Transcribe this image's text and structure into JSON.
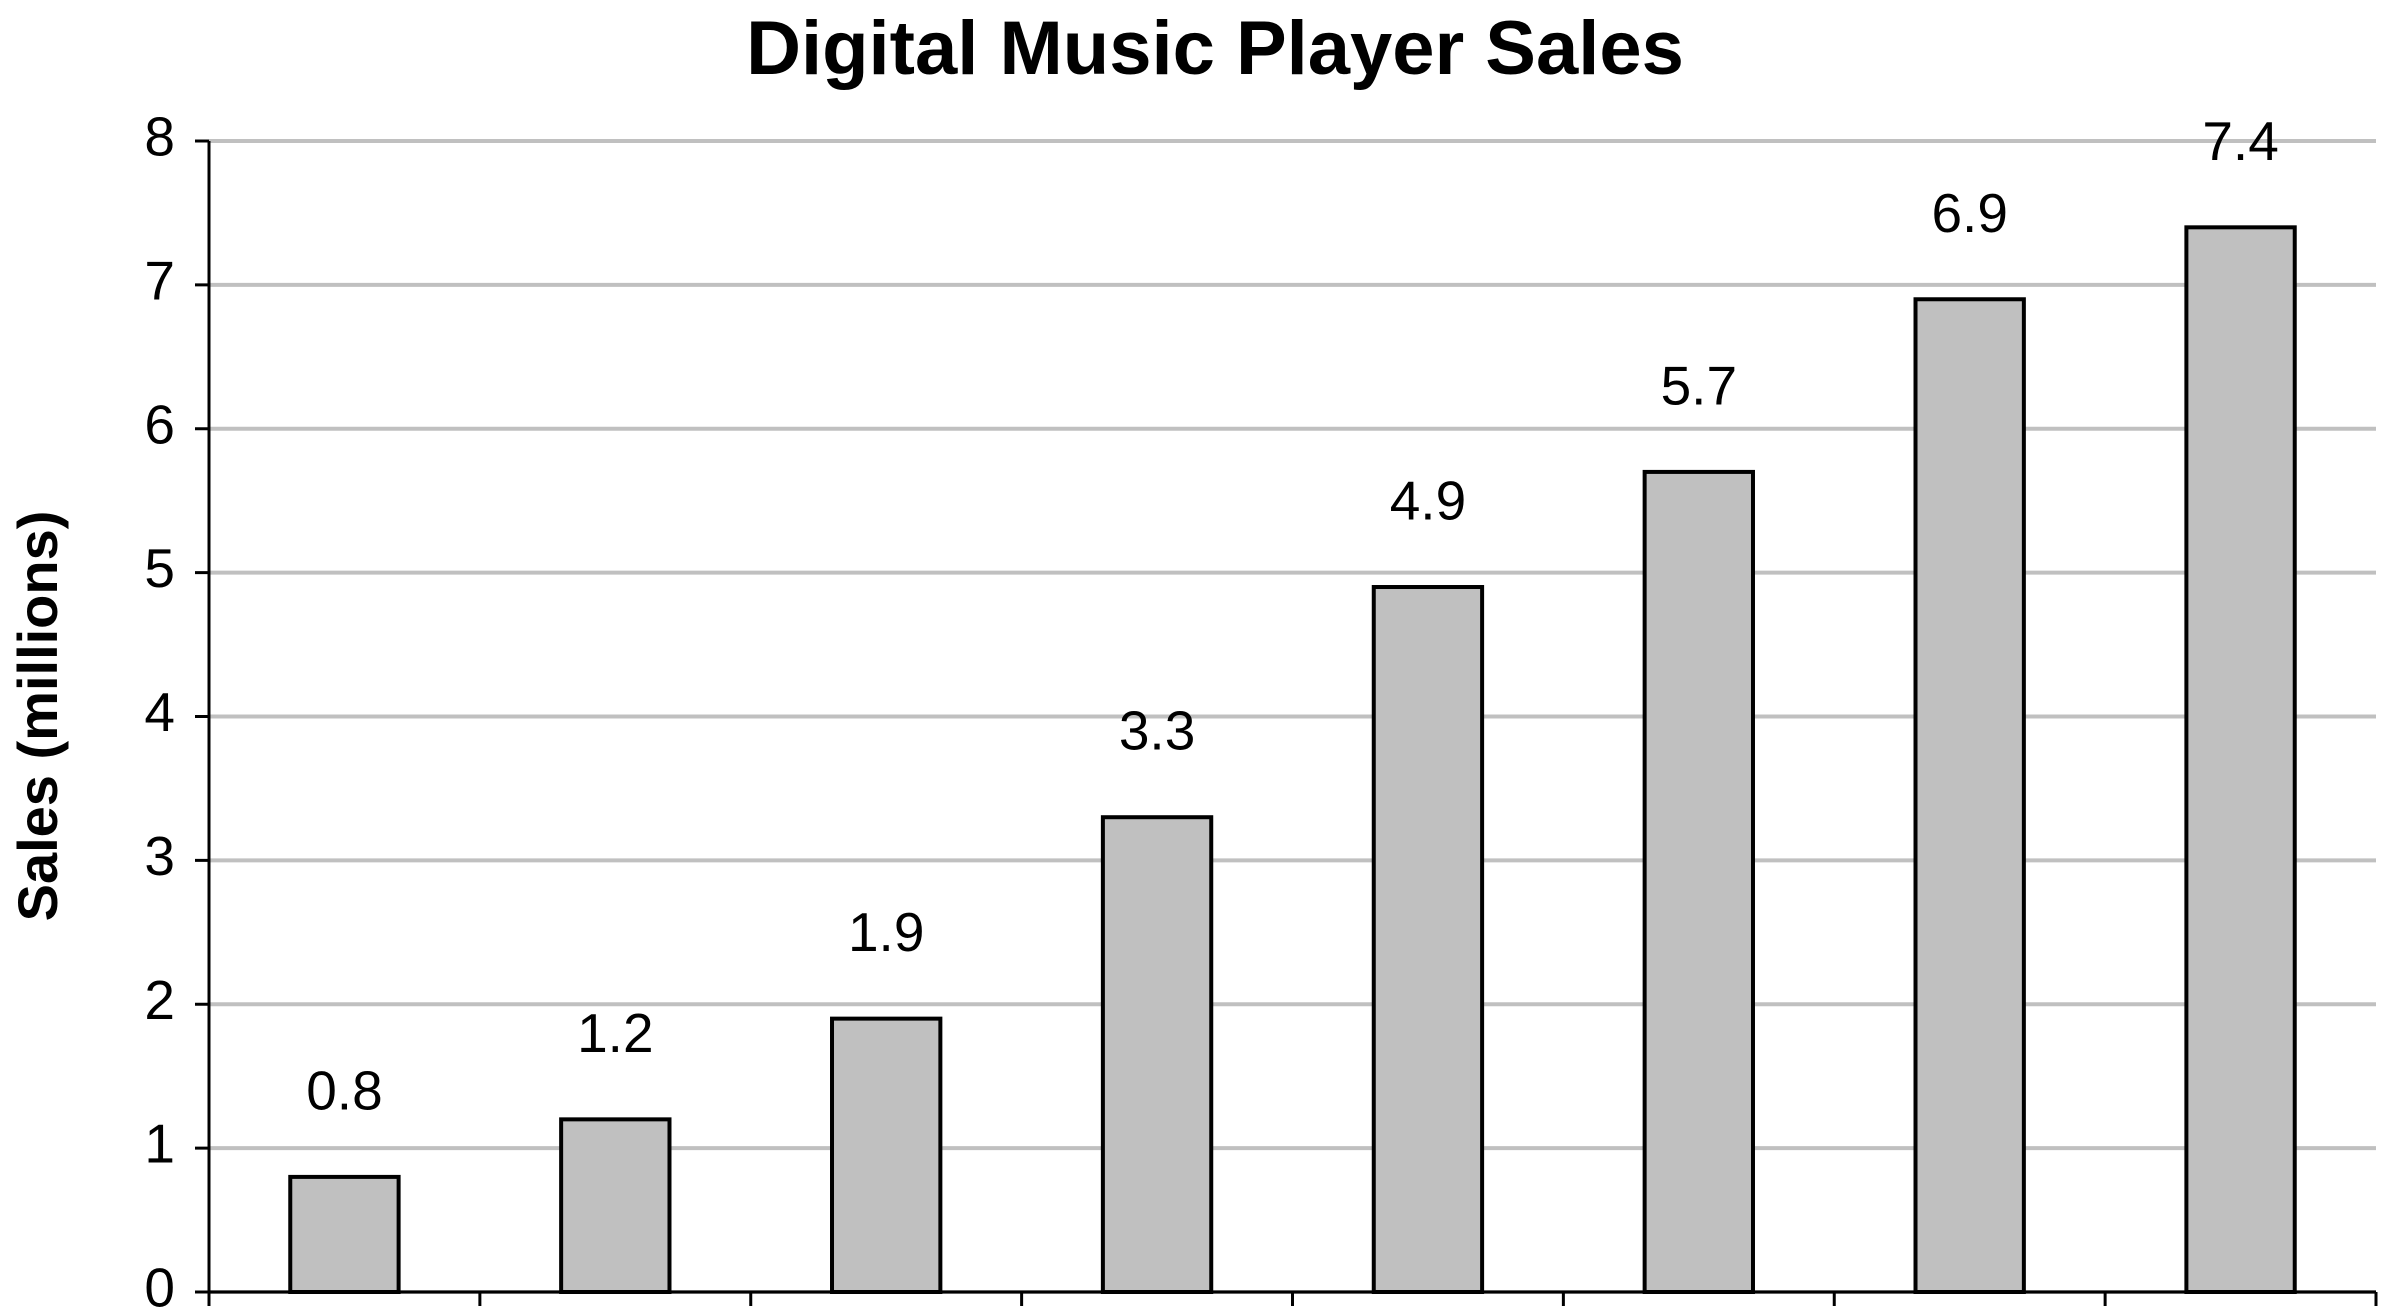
{
  "chart_data": {
    "type": "bar",
    "title": "Digital Music Player Sales",
    "y_label": "Sales (millions)",
    "categories": [
      null,
      null,
      null,
      null,
      null,
      null,
      null,
      null
    ],
    "values": [
      0.8,
      1.2,
      1.9,
      3.3,
      4.9,
      5.7,
      6.9,
      7.4
    ],
    "color": "#c0c0c0",
    "ylim": [
      0,
      8
    ],
    "yticks": [
      0,
      1,
      2,
      3,
      4,
      5,
      6,
      7,
      8
    ],
    "grid": true
  }
}
